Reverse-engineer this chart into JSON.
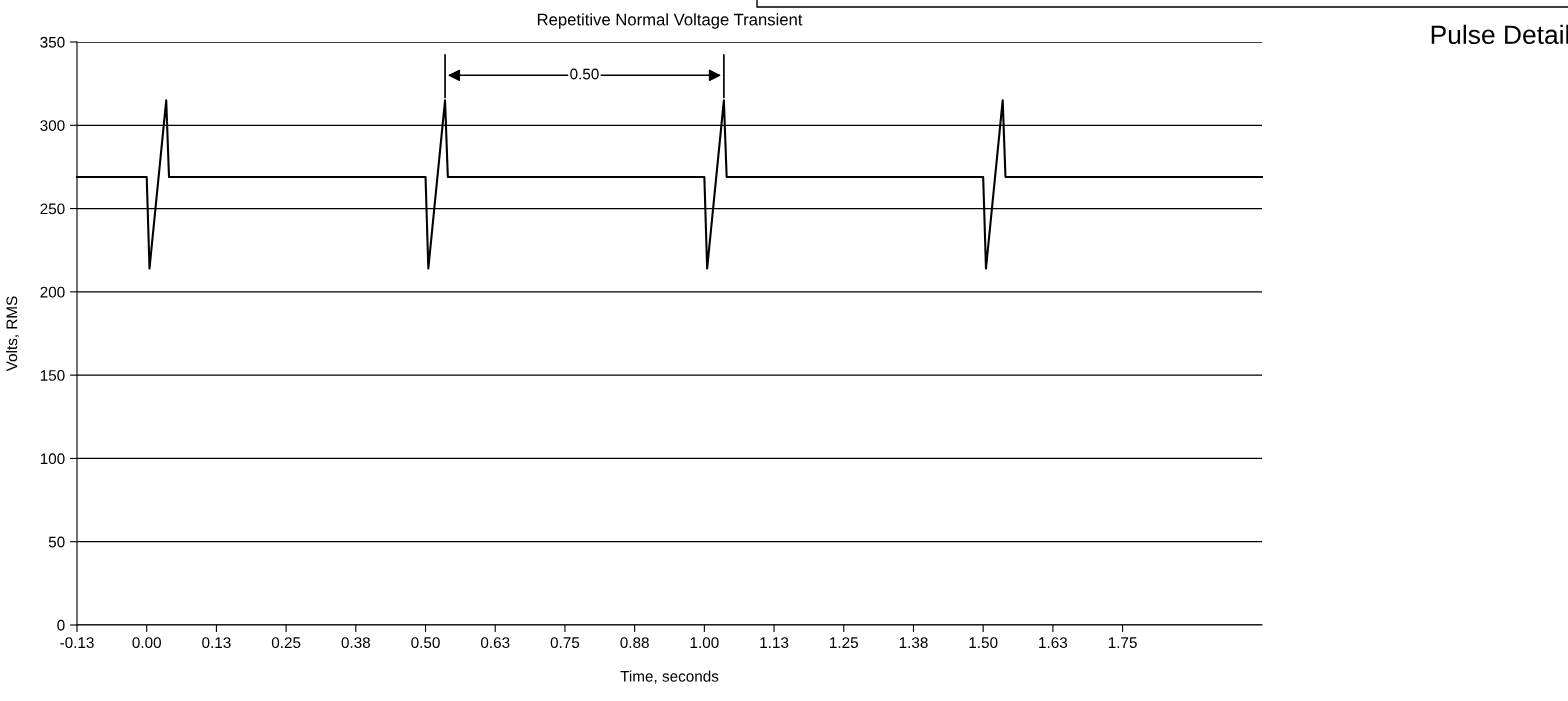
{
  "chart_data": {
    "type": "line",
    "title": "Repetitive Normal Voltage Transient",
    "xlabel": "Time, seconds",
    "ylabel": "Volts, RMS",
    "series": [
      {
        "color": "#000000",
        "x": [
          -0.125,
          0.0,
          0.005,
          0.035,
          0.04,
          0.5,
          0.505,
          0.535,
          0.54,
          1.0,
          1.005,
          1.035,
          1.04,
          1.5,
          1.505,
          1.535,
          1.54,
          2.0
        ],
        "values": [
          269,
          269,
          214,
          315,
          269,
          269,
          214,
          315,
          269,
          269,
          214,
          315,
          269,
          269,
          214,
          315,
          269,
          269
        ]
      }
    ],
    "xlim": [
      -0.125,
      2.0
    ],
    "xticks": [
      {
        "value": -0.125,
        "label": "-0.13"
      },
      {
        "value": 0,
        "label": "0.00"
      },
      {
        "value": 0.125,
        "label": "0.13"
      },
      {
        "value": 0.25,
        "label": "0.25"
      },
      {
        "value": 0.375,
        "label": "0.38"
      },
      {
        "value": 0.5,
        "label": "0.50"
      },
      {
        "value": 0.625,
        "label": "0.63"
      },
      {
        "value": 0.75,
        "label": "0.75"
      },
      {
        "value": 0.875,
        "label": "0.88"
      },
      {
        "value": 1.0,
        "label": "1.00"
      },
      {
        "value": 1.125,
        "label": "1.13"
      },
      {
        "value": 1.25,
        "label": "1.25"
      },
      {
        "value": 1.375,
        "label": "1.38"
      },
      {
        "value": 1.5,
        "label": "1.50"
      },
      {
        "value": 1.625,
        "label": "1.63"
      },
      {
        "value": 1.75,
        "label": "1.75"
      }
    ],
    "ylim": [
      0,
      350
    ],
    "yticks": [
      0,
      50,
      100,
      150,
      200,
      250,
      300,
      350
    ],
    "grid": "y",
    "marker": "none",
    "line_style": "solid",
    "annotations": [
      {
        "text": "0.50",
        "x": 0.785,
        "y": 330
      },
      "Pulse Detail"
    ]
  }
}
